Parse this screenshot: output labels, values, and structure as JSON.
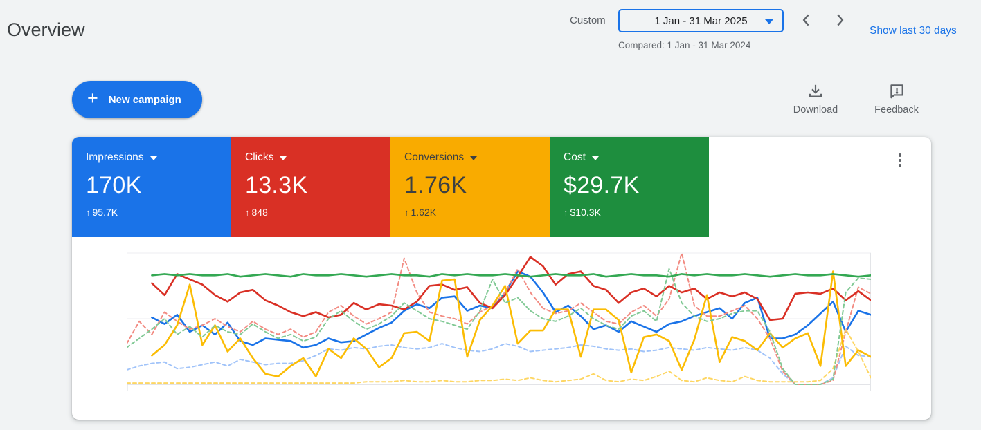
{
  "header": {
    "title": "Overview"
  },
  "date_control": {
    "mode_label": "Custom",
    "range": "1 Jan - 31 Mar 2025",
    "compared_label": "Compared: 1 Jan - 31 Mar 2024",
    "show_last_label": "Show last 30 days"
  },
  "toolbar": {
    "new_campaign_label": "New campaign",
    "download_label": "Download",
    "feedback_label": "Feedback"
  },
  "icons": {
    "plus": "+",
    "date_dropdown_caret": "filled triangle down (blue)",
    "chevron_left": "previous period",
    "chevron_right": "next period",
    "download": "arrow-down-into-tray",
    "feedback": "speech-bubble-with-exclamation",
    "kebab": "vertical-three-dots",
    "delta_up": "↑"
  },
  "colors": {
    "accent_blue": "#1a73e8",
    "card_blue": "#1a73e8",
    "card_red": "#d93025",
    "card_yellow": "#f9ab00",
    "card_green": "#1e8e3e",
    "page_bg": "#f1f3f4",
    "muted_text": "#5f6368"
  },
  "scorecards": [
    {
      "label": "Impressions",
      "value": "170K",
      "delta": "95.7K",
      "bg": "#1a73e8",
      "fg": "#ffffff"
    },
    {
      "label": "Clicks",
      "value": "13.3K",
      "delta": "848",
      "bg": "#d93025",
      "fg": "#ffffff"
    },
    {
      "label": "Conversions",
      "value": "1.76K",
      "delta": "1.62K",
      "bg": "#f9ab00",
      "fg": "#3c4043"
    },
    {
      "label": "Cost",
      "value": "$29.7K",
      "delta": "$10.3K",
      "bg": "#1e8e3e",
      "fg": "#ffffff"
    }
  ],
  "chart_data": {
    "type": "line",
    "title": "Daily performance 1 Jan - 31 Mar 2025 (solid) vs 1 Jan - 31 Mar 2024 (dashed)",
    "xlabel": "",
    "ylabel": "",
    "x_description": "days across the selected quarter; no tick labels shown",
    "y": {
      "gridlines_pct": [
        0,
        50,
        100
      ],
      "description": "no y-axis labels visible; values are % of plot height"
    },
    "legend_position": "none (colors match scorecards)",
    "series": [
      {
        "name": "Impressions (previous period)",
        "color": "#a0c3f9",
        "style": "dashed",
        "values": [
          11,
          14,
          16,
          17,
          12,
          13,
          15,
          17,
          14,
          19,
          17,
          15,
          16,
          16,
          18,
          22,
          27,
          26,
          28,
          27,
          29,
          30,
          28,
          27,
          28,
          31,
          28,
          26,
          25,
          27,
          31,
          29,
          25,
          26,
          27,
          28,
          30,
          29,
          27,
          26,
          27,
          25,
          26,
          28,
          27,
          26,
          28,
          27,
          26,
          28,
          26,
          20,
          8,
          0,
          0,
          0,
          5,
          29,
          22,
          21
        ]
      },
      {
        "name": "Impressions (current)",
        "color": "#1a73e8",
        "style": "solid",
        "values": [
          null,
          null,
          51,
          46,
          53,
          40,
          45,
          38,
          47,
          33,
          30,
          35,
          34,
          33,
          28,
          30,
          35,
          32,
          33,
          38,
          43,
          47,
          56,
          61,
          58,
          66,
          67,
          56,
          60,
          58,
          70,
          86,
          82,
          70,
          55,
          60,
          52,
          42,
          45,
          40,
          48,
          44,
          40,
          46,
          48,
          52,
          55,
          58,
          50,
          62,
          66,
          35,
          35,
          38,
          45,
          54,
          63,
          40,
          56,
          53
        ]
      },
      {
        "name": "Clicks (previous period)",
        "color": "#f28b82",
        "style": "dashed",
        "values": [
          31,
          48,
          38,
          55,
          48,
          42,
          45,
          50,
          44,
          40,
          48,
          42,
          38,
          42,
          36,
          40,
          55,
          60,
          52,
          46,
          50,
          55,
          96,
          70,
          55,
          52,
          50,
          46,
          55,
          60,
          70,
          88,
          70,
          58,
          54,
          56,
          62,
          55,
          48,
          46,
          55,
          60,
          52,
          65,
          100,
          60,
          52,
          52,
          56,
          60,
          50,
          35,
          10,
          0,
          0,
          0,
          3,
          40,
          74,
          69
        ]
      },
      {
        "name": "Clicks (current)",
        "color": "#d93025",
        "style": "solid",
        "values": [
          null,
          null,
          77,
          68,
          84,
          80,
          76,
          68,
          63,
          70,
          72,
          64,
          60,
          55,
          52,
          55,
          51,
          53,
          62,
          57,
          61,
          60,
          57,
          63,
          75,
          76,
          72,
          74,
          62,
          58,
          68,
          82,
          97,
          90,
          76,
          84,
          86,
          75,
          72,
          62,
          70,
          73,
          67,
          75,
          70,
          73,
          65,
          70,
          67,
          70,
          65,
          49,
          50,
          69,
          70,
          69,
          73,
          64,
          71,
          64
        ]
      },
      {
        "name": "Conversions (previous period)",
        "color": "#fdd663",
        "style": "dashed",
        "values": [
          1,
          1,
          1,
          1,
          1,
          1,
          1,
          1,
          1,
          1,
          1,
          1,
          1,
          1,
          1,
          1,
          1,
          1,
          1,
          2,
          2,
          2,
          3,
          2,
          2,
          3,
          2,
          2,
          3,
          3,
          4,
          3,
          5,
          3,
          2,
          3,
          4,
          8,
          3,
          2,
          4,
          3,
          6,
          10,
          3,
          2,
          5,
          3,
          2,
          6,
          3,
          2,
          2,
          2,
          2,
          3,
          12,
          42,
          25,
          5
        ]
      },
      {
        "name": "Conversions (current)",
        "color": "#fbbc04",
        "style": "solid",
        "values": [
          null,
          null,
          22,
          30,
          45,
          76,
          30,
          45,
          25,
          35,
          20,
          8,
          6,
          14,
          20,
          6,
          27,
          20,
          35,
          27,
          13,
          20,
          39,
          40,
          33,
          79,
          80,
          21,
          49,
          60,
          75,
          31,
          41,
          41,
          57,
          57,
          21,
          57,
          57,
          49,
          9,
          36,
          38,
          33,
          11,
          34,
          68,
          17,
          36,
          33,
          26,
          39,
          28,
          35,
          39,
          14,
          86,
          14,
          26,
          21
        ]
      },
      {
        "name": "Cost (previous period)",
        "color": "#81c995",
        "style": "dashed",
        "values": [
          28,
          35,
          42,
          50,
          38,
          44,
          36,
          45,
          40,
          38,
          46,
          40,
          35,
          38,
          33,
          36,
          50,
          56,
          48,
          42,
          46,
          52,
          62,
          56,
          50,
          48,
          45,
          42,
          56,
          80,
          62,
          66,
          56,
          50,
          48,
          52,
          58,
          50,
          45,
          42,
          52,
          56,
          48,
          88,
          62,
          52,
          48,
          50,
          54,
          56,
          56,
          40,
          12,
          0,
          0,
          0,
          4,
          70,
          81,
          80
        ]
      },
      {
        "name": "Cost (current)",
        "color": "#34a853",
        "style": "solid",
        "values": [
          null,
          null,
          83,
          84,
          83,
          84,
          83,
          83,
          84,
          82,
          83,
          84,
          83,
          82,
          84,
          83,
          83,
          84,
          83,
          82,
          83,
          84,
          83,
          83,
          82,
          84,
          83,
          84,
          83,
          83,
          84,
          83,
          82,
          83,
          84,
          83,
          83,
          84,
          82,
          83,
          84,
          83,
          83,
          82,
          84,
          83,
          84,
          83,
          83,
          84,
          83,
          82,
          83,
          84,
          83,
          83,
          84,
          83,
          82,
          83
        ]
      }
    ]
  }
}
